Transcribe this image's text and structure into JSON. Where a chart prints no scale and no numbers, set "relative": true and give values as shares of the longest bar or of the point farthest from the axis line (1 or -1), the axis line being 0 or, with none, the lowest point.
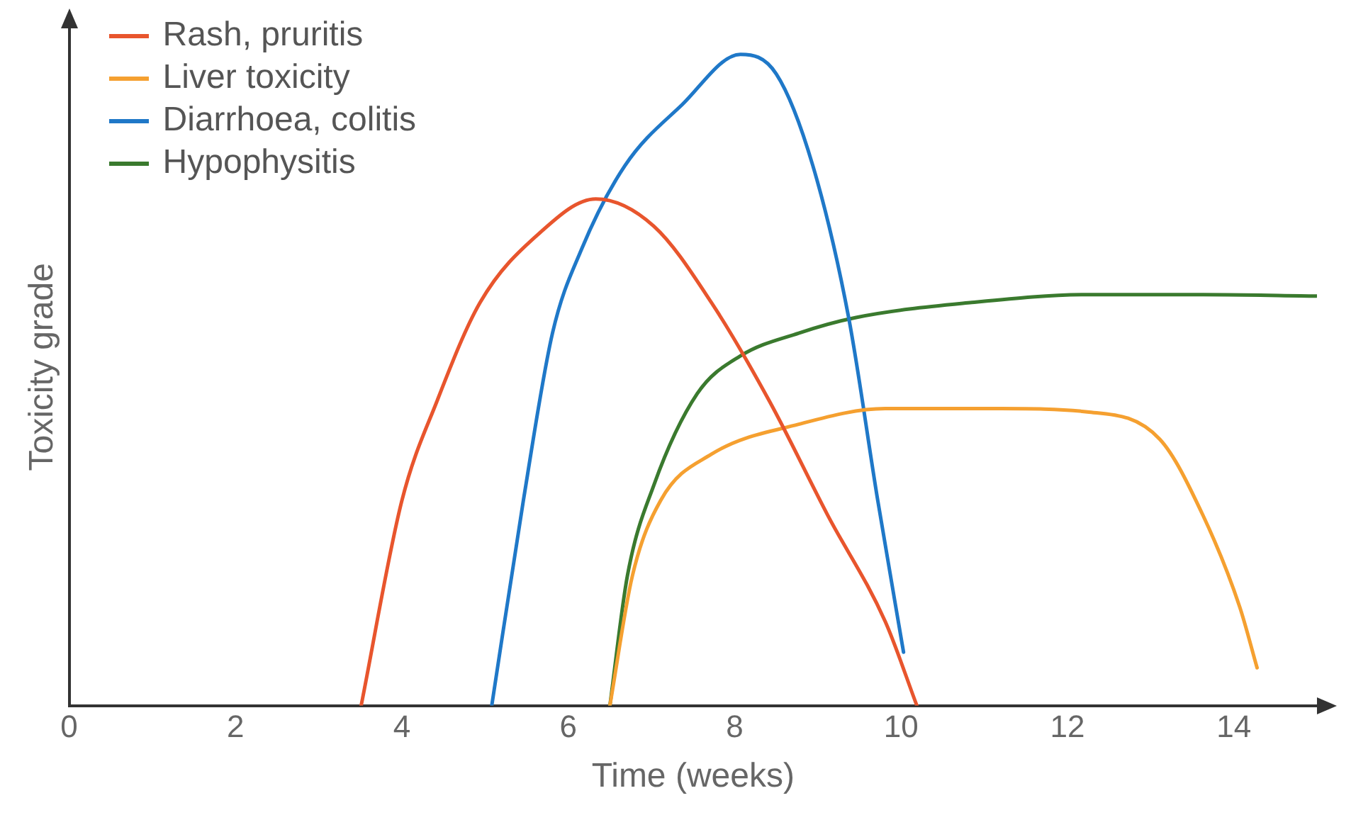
{
  "chart_data": {
    "type": "line",
    "relative": true,
    "xlabel": "Time (weeks)",
    "ylabel": "Toxicity grade",
    "xlim": [
      0,
      15
    ],
    "xticks": [
      0,
      2,
      4,
      6,
      8,
      10,
      12,
      14
    ],
    "legend": "top left",
    "grid": false,
    "marker": "none",
    "line_style": "solid",
    "series": [
      {
        "name": "Rash, pruritis",
        "color": "#e8552d",
        "x": [
          3.51,
          4.0,
          4.42,
          4.94,
          5.64,
          6.33,
          7.03,
          7.72,
          8.42,
          9.12,
          9.81,
          10.19
        ],
        "values": [
          0,
          0.315,
          0.467,
          0.619,
          0.724,
          0.778,
          0.736,
          0.619,
          0.467,
          0.292,
          0.129,
          0
        ]
      },
      {
        "name": "Liver toxicity",
        "color": "#f5a030",
        "x": [
          6.5,
          6.77,
          7.11,
          7.72,
          8.77,
          9.81,
          11.2,
          12.24,
          13.11,
          13.63,
          14.07,
          14.28
        ],
        "values": [
          0,
          0.199,
          0.315,
          0.386,
          0.432,
          0.456,
          0.456,
          0.451,
          0.409,
          0.292,
          0.152,
          0.058
        ]
      },
      {
        "name": "Diarrhoea, colitis",
        "color": "#1f78c8",
        "x": [
          5.08,
          5.46,
          5.81,
          6.16,
          6.68,
          7.37,
          8.07,
          8.5,
          8.94,
          9.37,
          9.72,
          10.03
        ],
        "values": [
          0,
          0.315,
          0.572,
          0.701,
          0.829,
          0.923,
          1,
          0.97,
          0.829,
          0.596,
          0.315,
          0.082
        ]
      },
      {
        "name": "Hypophysitis",
        "color": "#3a7a2e",
        "x": [
          6.5,
          6.71,
          7.03,
          7.55,
          8.07,
          8.77,
          9.46,
          10.85,
          12.24,
          13.63,
          14.99
        ],
        "values": [
          0,
          0.199,
          0.339,
          0.479,
          0.537,
          0.572,
          0.596,
          0.619,
          0.631,
          0.631,
          0.629
        ]
      }
    ]
  }
}
